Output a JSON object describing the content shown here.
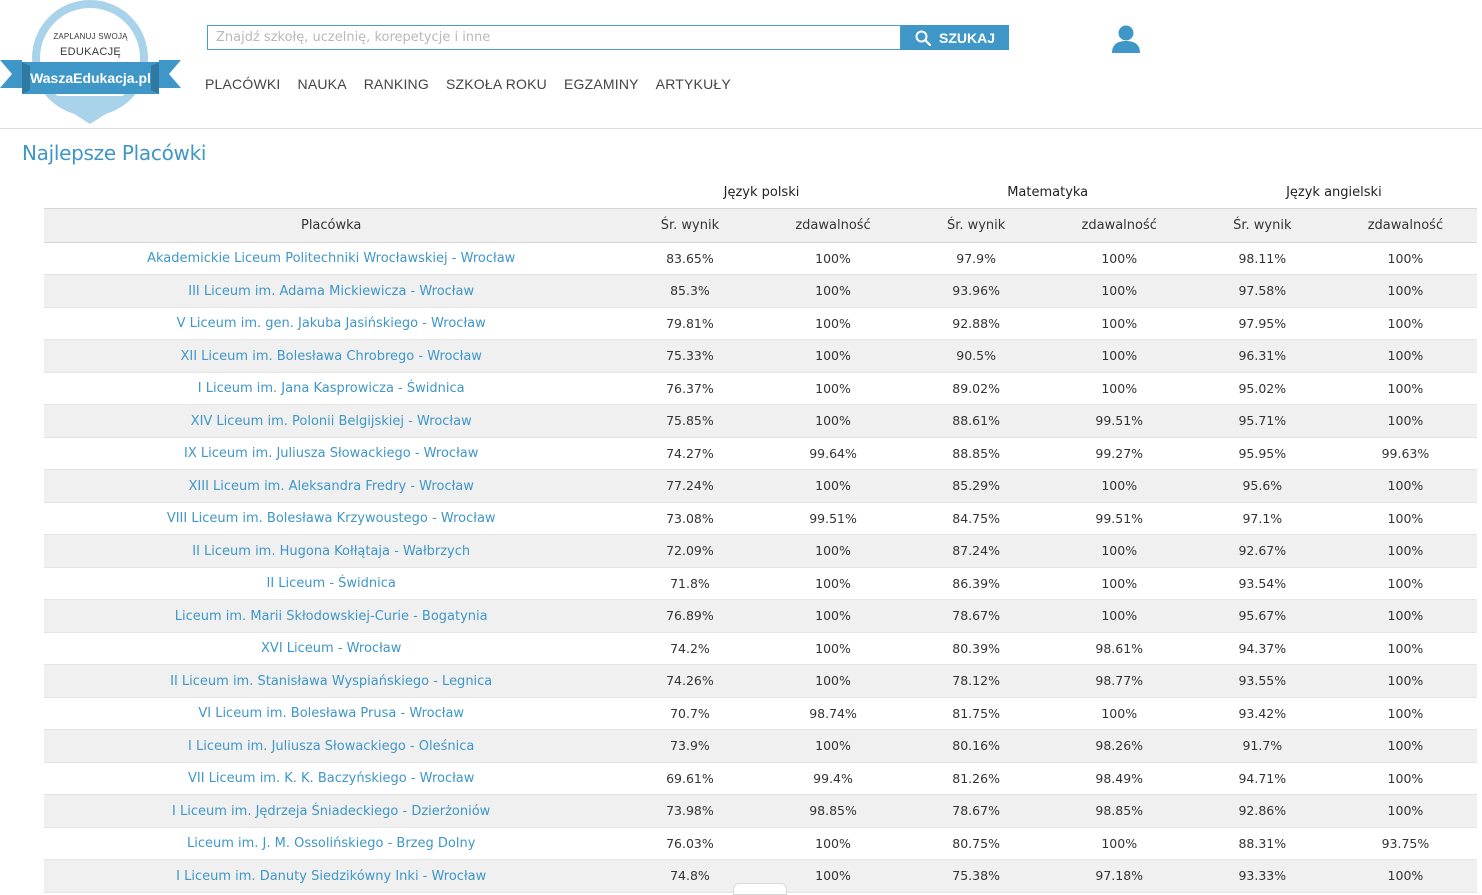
{
  "logo": {
    "tagline_top": "ZAPLANUJ SWOJĄ",
    "tagline_mid": "EDUKACJĘ",
    "brand": "WaszaEdukacja.pl",
    "colors": {
      "primary": "#3f97c7",
      "light": "#a9d3ea"
    }
  },
  "search": {
    "placeholder": "Znajdź szkołę, uczelnię, korepetycje i inne",
    "value": "",
    "button_label": "SZUKAJ",
    "icon": "search-icon"
  },
  "user": {
    "icon": "user-icon"
  },
  "nav": {
    "items": [
      {
        "label": "PLACÓWKI"
      },
      {
        "label": "NAUKA"
      },
      {
        "label": "RANKING"
      },
      {
        "label": "SZKOŁA ROKU"
      },
      {
        "label": "EGZAMINY"
      },
      {
        "label": "ARTYKUŁY"
      }
    ]
  },
  "page": {
    "title": "Najlepsze Placówki"
  },
  "table": {
    "groups": [
      "Język polski",
      "Matematyka",
      "Język angielski"
    ],
    "columns": [
      "Placówka",
      "Śr. wynik",
      "zdawalność",
      "Śr. wynik",
      "zdawalność",
      "Śr. wynik",
      "zdawalność"
    ],
    "rows": [
      [
        "Akademickie Liceum Politechniki Wrocławskiej - Wrocław",
        "83.65%",
        "100%",
        "97.9%",
        "100%",
        "98.11%",
        "100%"
      ],
      [
        "III Liceum im. Adama Mickiewicza - Wrocław",
        "85.3%",
        "100%",
        "93.96%",
        "100%",
        "97.58%",
        "100%"
      ],
      [
        "V Liceum im. gen. Jakuba Jasińskiego - Wrocław",
        "79.81%",
        "100%",
        "92.88%",
        "100%",
        "97.95%",
        "100%"
      ],
      [
        "XII Liceum im. Bolesława Chrobrego - Wrocław",
        "75.33%",
        "100%",
        "90.5%",
        "100%",
        "96.31%",
        "100%"
      ],
      [
        "I Liceum im. Jana Kasprowicza - Świdnica",
        "76.37%",
        "100%",
        "89.02%",
        "100%",
        "95.02%",
        "100%"
      ],
      [
        "XIV Liceum im. Polonii Belgijskiej - Wrocław",
        "75.85%",
        "100%",
        "88.61%",
        "99.51%",
        "95.71%",
        "100%"
      ],
      [
        "IX Liceum im. Juliusza Słowackiego - Wrocław",
        "74.27%",
        "99.64%",
        "88.85%",
        "99.27%",
        "95.95%",
        "99.63%"
      ],
      [
        "XIII Liceum im. Aleksandra Fredry - Wrocław",
        "77.24%",
        "100%",
        "85.29%",
        "100%",
        "95.6%",
        "100%"
      ],
      [
        "VIII Liceum im. Bolesława Krzywoustego - Wrocław",
        "73.08%",
        "99.51%",
        "84.75%",
        "99.51%",
        "97.1%",
        "100%"
      ],
      [
        "II Liceum im. Hugona Kołłątaja - Wałbrzych",
        "72.09%",
        "100%",
        "87.24%",
        "100%",
        "92.67%",
        "100%"
      ],
      [
        "II Liceum - Świdnica",
        "71.8%",
        "100%",
        "86.39%",
        "100%",
        "93.54%",
        "100%"
      ],
      [
        "Liceum im. Marii Skłodowskiej-Curie - Bogatynia",
        "76.89%",
        "100%",
        "78.67%",
        "100%",
        "95.67%",
        "100%"
      ],
      [
        "XVI Liceum - Wrocław",
        "74.2%",
        "100%",
        "80.39%",
        "98.61%",
        "94.37%",
        "100%"
      ],
      [
        "II Liceum im. Stanisława Wyspiańskiego - Legnica",
        "74.26%",
        "100%",
        "78.12%",
        "98.77%",
        "93.55%",
        "100%"
      ],
      [
        "VI Liceum im. Bolesława Prusa - Wrocław",
        "70.7%",
        "98.74%",
        "81.75%",
        "100%",
        "93.42%",
        "100%"
      ],
      [
        "I Liceum im. Juliusza Słowackiego - Oleśnica",
        "73.9%",
        "100%",
        "80.16%",
        "98.26%",
        "91.7%",
        "100%"
      ],
      [
        "VII Liceum im. K. K. Baczyńskiego - Wrocław",
        "69.61%",
        "99.4%",
        "81.26%",
        "98.49%",
        "94.71%",
        "100%"
      ],
      [
        "I Liceum im. Jędrzeja Śniadeckiego - Dzierżoniów",
        "73.98%",
        "98.85%",
        "78.67%",
        "98.85%",
        "92.86%",
        "100%"
      ],
      [
        "Liceum im. J. M. Ossolińskiego - Brzeg Dolny",
        "76.03%",
        "100%",
        "80.75%",
        "100%",
        "88.31%",
        "93.75%"
      ],
      [
        "I Liceum im. Danuty Siedzikówny Inki - Wrocław",
        "74.8%",
        "100%",
        "75.38%",
        "97.18%",
        "93.33%",
        "100%"
      ]
    ]
  }
}
